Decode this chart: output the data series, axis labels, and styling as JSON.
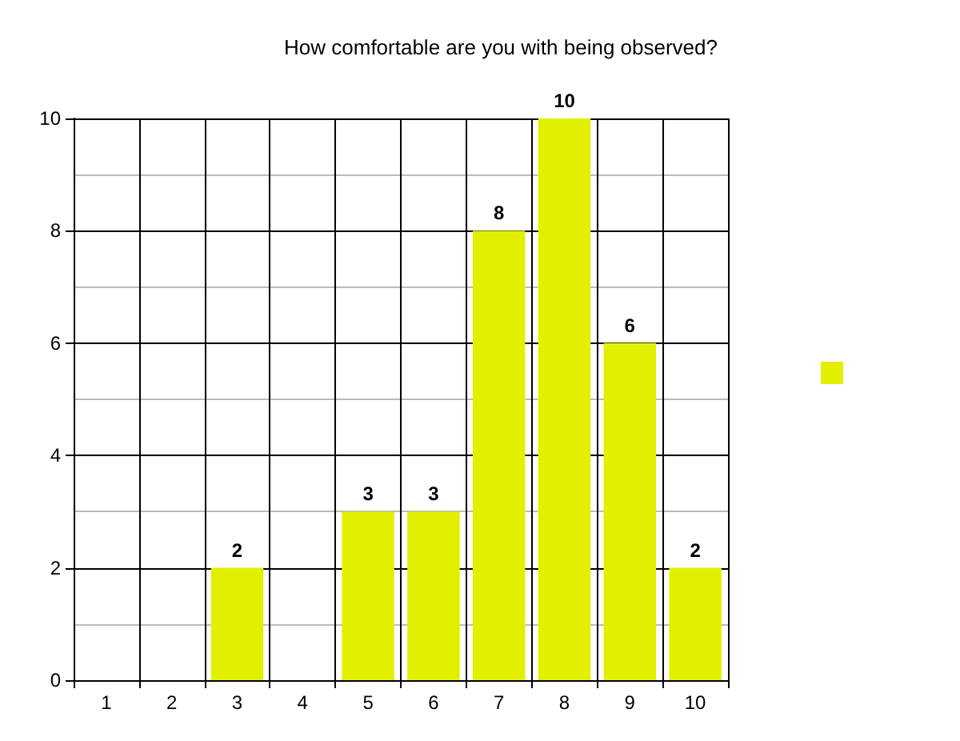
{
  "chart_data": {
    "type": "bar",
    "title": "How comfortable are you with being observed?",
    "categories": [
      "1",
      "2",
      "3",
      "4",
      "5",
      "6",
      "7",
      "8",
      "9",
      "10"
    ],
    "series": [
      {
        "color": "#e2f000",
        "values": [
          null,
          null,
          2,
          null,
          3,
          3,
          8,
          10,
          6,
          2
        ]
      }
    ],
    "ylim": [
      0,
      10
    ],
    "yticks": [
      0,
      2,
      4,
      6,
      8,
      10
    ],
    "grid": true,
    "data_labels": true
  }
}
